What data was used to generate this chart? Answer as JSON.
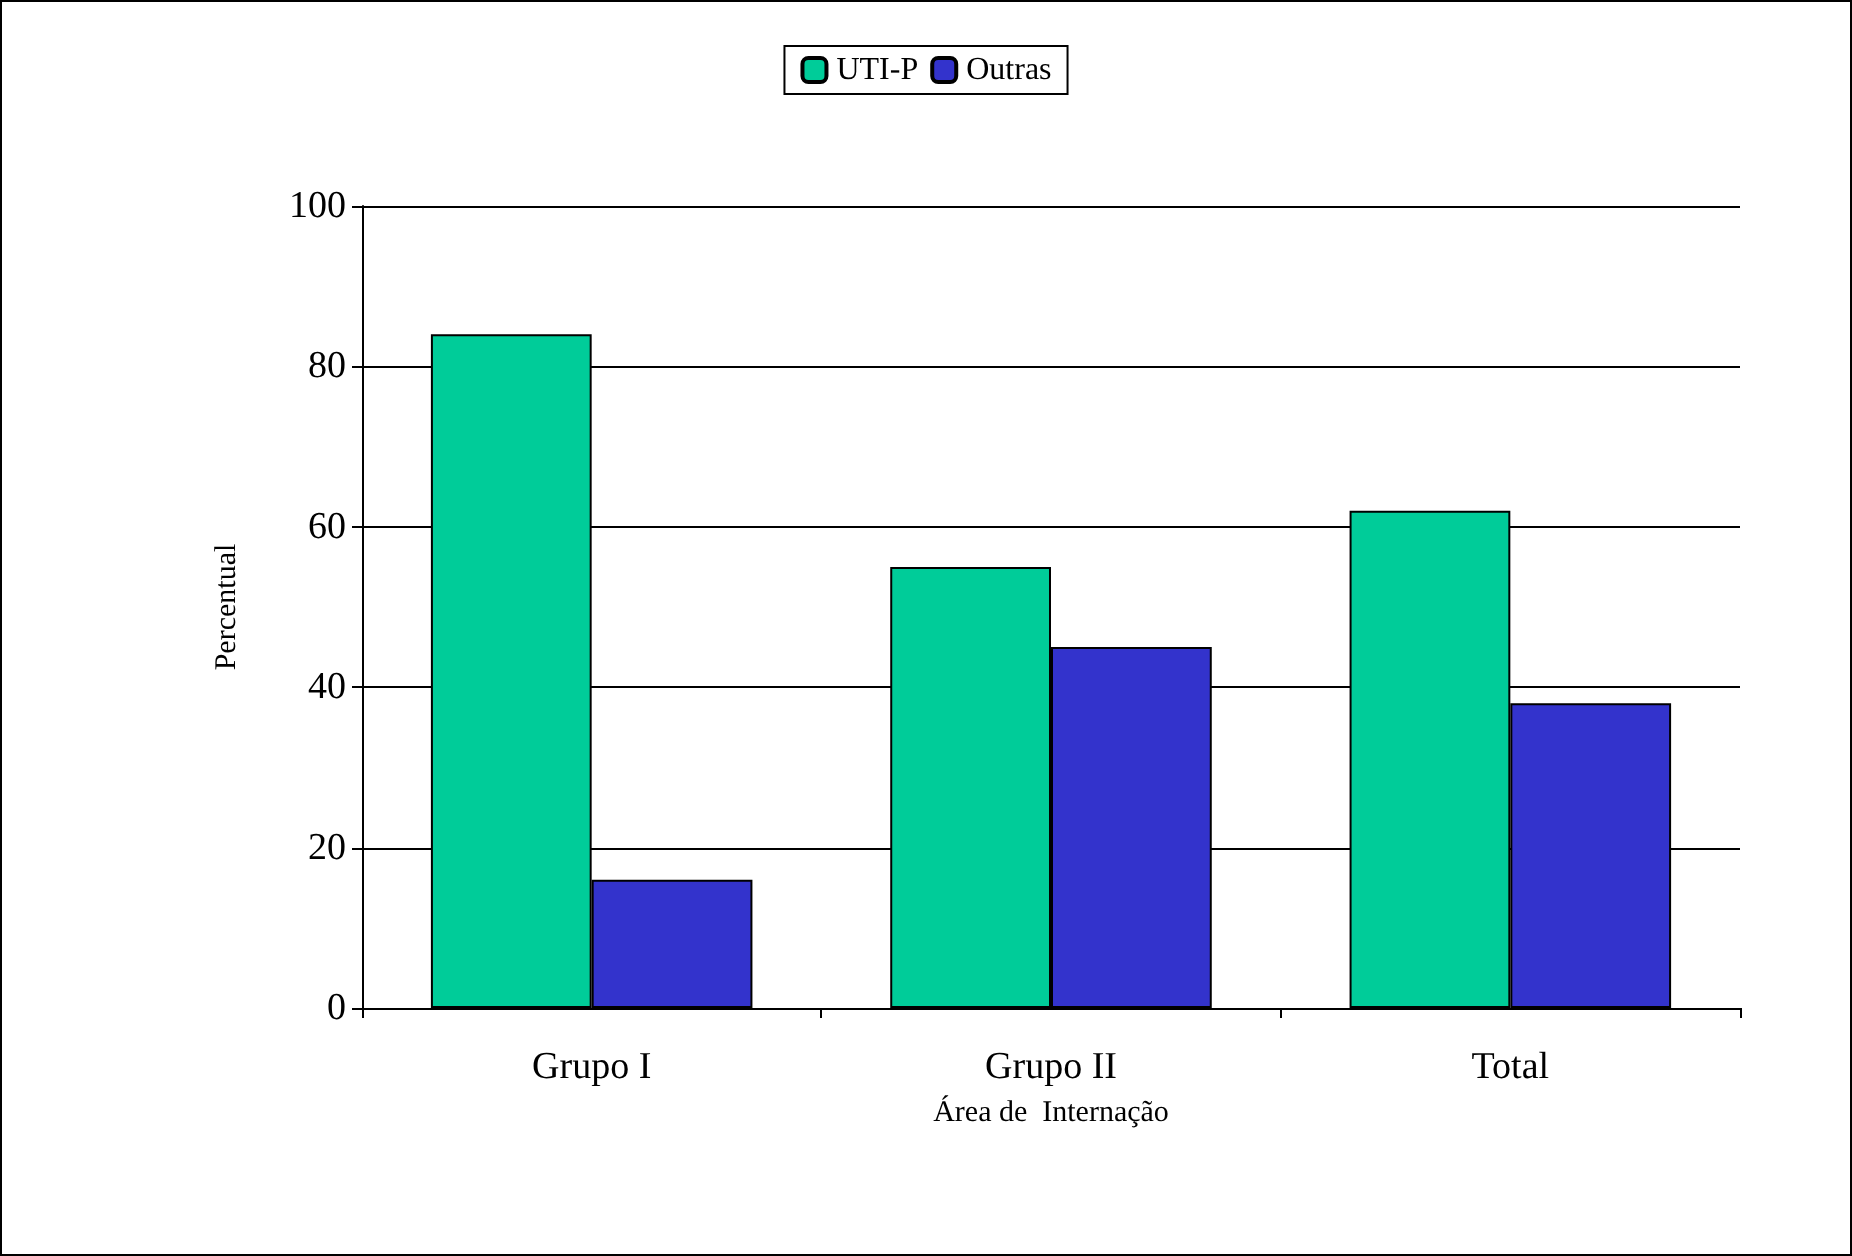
{
  "chart_data": {
    "type": "bar",
    "xlabel": "Área de  Internação",
    "ylabel": "Percentual",
    "categories": [
      "Grupo I",
      "Grupo II",
      "Total"
    ],
    "series": [
      {
        "name": "UTI-P",
        "color": "#00cc99",
        "values": [
          84,
          55,
          62
        ]
      },
      {
        "name": "Outras",
        "color": "#3333cc",
        "values": [
          16,
          45,
          38
        ]
      }
    ],
    "ylim": [
      0,
      100
    ],
    "yticks": [
      0,
      20,
      40,
      60,
      80,
      100
    ],
    "grid": "y",
    "legend": "top"
  }
}
